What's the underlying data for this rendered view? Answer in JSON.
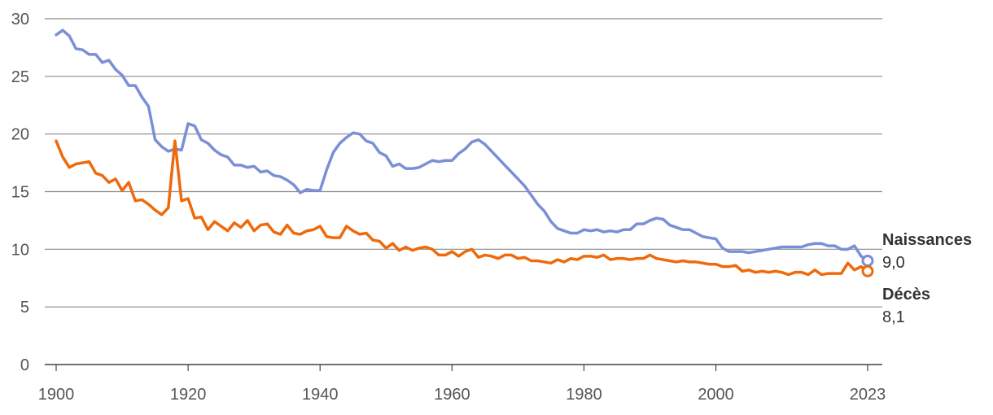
{
  "chart_data": {
    "type": "line",
    "title": "",
    "xlabel": "",
    "ylabel": "",
    "xlim": [
      1900,
      2023
    ],
    "ylim": [
      0,
      30
    ],
    "x_ticks": [
      "1900",
      "1920",
      "1940",
      "1960",
      "1980",
      "2000",
      "2023"
    ],
    "y_ticks": [
      "0",
      "5",
      "10",
      "15",
      "20",
      "25",
      "30"
    ],
    "grid": true,
    "legend": "end-of-line labels",
    "series": [
      {
        "name": "Naissances",
        "color": "#7b8fd6",
        "end_label": "9,0",
        "points": [
          [
            1900,
            28.6
          ],
          [
            1901,
            29.0
          ],
          [
            1902,
            28.5
          ],
          [
            1903,
            27.4
          ],
          [
            1904,
            27.3
          ],
          [
            1905,
            26.9
          ],
          [
            1906,
            26.9
          ],
          [
            1907,
            26.2
          ],
          [
            1908,
            26.4
          ],
          [
            1909,
            25.6
          ],
          [
            1910,
            25.1
          ],
          [
            1911,
            24.2
          ],
          [
            1912,
            24.2
          ],
          [
            1913,
            23.2
          ],
          [
            1914,
            22.4
          ],
          [
            1915,
            19.5
          ],
          [
            1916,
            18.9
          ],
          [
            1917,
            18.5
          ],
          [
            1918,
            18.7
          ],
          [
            1919,
            18.6
          ],
          [
            1920,
            20.9
          ],
          [
            1921,
            20.7
          ],
          [
            1922,
            19.5
          ],
          [
            1923,
            19.2
          ],
          [
            1924,
            18.6
          ],
          [
            1925,
            18.2
          ],
          [
            1926,
            18.0
          ],
          [
            1927,
            17.3
          ],
          [
            1928,
            17.3
          ],
          [
            1929,
            17.1
          ],
          [
            1930,
            17.2
          ],
          [
            1931,
            16.7
          ],
          [
            1932,
            16.8
          ],
          [
            1933,
            16.4
          ],
          [
            1934,
            16.3
          ],
          [
            1935,
            16.0
          ],
          [
            1936,
            15.6
          ],
          [
            1937,
            14.9
          ],
          [
            1938,
            15.2
          ],
          [
            1939,
            15.1
          ],
          [
            1940,
            15.1
          ],
          [
            1941,
            16.9
          ],
          [
            1942,
            18.4
          ],
          [
            1943,
            19.2
          ],
          [
            1944,
            19.7
          ],
          [
            1945,
            20.1
          ],
          [
            1946,
            20.0
          ],
          [
            1947,
            19.4
          ],
          [
            1948,
            19.2
          ],
          [
            1949,
            18.4
          ],
          [
            1950,
            18.1
          ],
          [
            1951,
            17.2
          ],
          [
            1952,
            17.4
          ],
          [
            1953,
            17.0
          ],
          [
            1954,
            17.0
          ],
          [
            1955,
            17.1
          ],
          [
            1956,
            17.4
          ],
          [
            1957,
            17.7
          ],
          [
            1958,
            17.6
          ],
          [
            1959,
            17.7
          ],
          [
            1960,
            17.7
          ],
          [
            1961,
            18.3
          ],
          [
            1962,
            18.7
          ],
          [
            1963,
            19.3
          ],
          [
            1964,
            19.5
          ],
          [
            1965,
            19.1
          ],
          [
            1966,
            18.5
          ],
          [
            1967,
            17.9
          ],
          [
            1968,
            17.3
          ],
          [
            1969,
            16.7
          ],
          [
            1970,
            16.1
          ],
          [
            1971,
            15.5
          ],
          [
            1972,
            14.7
          ],
          [
            1973,
            13.9
          ],
          [
            1974,
            13.3
          ],
          [
            1975,
            12.4
          ],
          [
            1976,
            11.8
          ],
          [
            1977,
            11.6
          ],
          [
            1978,
            11.4
          ],
          [
            1979,
            11.4
          ],
          [
            1980,
            11.7
          ],
          [
            1981,
            11.6
          ],
          [
            1982,
            11.7
          ],
          [
            1983,
            11.5
          ],
          [
            1984,
            11.6
          ],
          [
            1985,
            11.5
          ],
          [
            1986,
            11.7
          ],
          [
            1987,
            11.7
          ],
          [
            1988,
            12.2
          ],
          [
            1989,
            12.2
          ],
          [
            1990,
            12.5
          ],
          [
            1991,
            12.7
          ],
          [
            1992,
            12.6
          ],
          [
            1993,
            12.1
          ],
          [
            1994,
            11.9
          ],
          [
            1995,
            11.7
          ],
          [
            1996,
            11.7
          ],
          [
            1997,
            11.4
          ],
          [
            1998,
            11.1
          ],
          [
            1999,
            11.0
          ],
          [
            2000,
            10.9
          ],
          [
            2001,
            10.1
          ],
          [
            2002,
            9.8
          ],
          [
            2003,
            9.8
          ],
          [
            2004,
            9.8
          ],
          [
            2005,
            9.7
          ],
          [
            2006,
            9.8
          ],
          [
            2007,
            9.9
          ],
          [
            2008,
            10.0
          ],
          [
            2009,
            10.1
          ],
          [
            2010,
            10.2
          ],
          [
            2011,
            10.2
          ],
          [
            2012,
            10.2
          ],
          [
            2013,
            10.2
          ],
          [
            2014,
            10.4
          ],
          [
            2015,
            10.5
          ],
          [
            2016,
            10.5
          ],
          [
            2017,
            10.3
          ],
          [
            2018,
            10.3
          ],
          [
            2019,
            10.0
          ],
          [
            2020,
            10.0
          ],
          [
            2021,
            10.3
          ],
          [
            2022,
            9.4
          ],
          [
            2023,
            9.0
          ]
        ]
      },
      {
        "name": "Décès",
        "color": "#ee6a0c",
        "end_label": "8,1",
        "points": [
          [
            1900,
            19.4
          ],
          [
            1901,
            18.0
          ],
          [
            1902,
            17.1
          ],
          [
            1903,
            17.4
          ],
          [
            1904,
            17.5
          ],
          [
            1905,
            17.6
          ],
          [
            1906,
            16.6
          ],
          [
            1907,
            16.4
          ],
          [
            1908,
            15.8
          ],
          [
            1909,
            16.1
          ],
          [
            1910,
            15.1
          ],
          [
            1911,
            15.8
          ],
          [
            1912,
            14.2
          ],
          [
            1913,
            14.3
          ],
          [
            1914,
            13.9
          ],
          [
            1915,
            13.4
          ],
          [
            1916,
            13.0
          ],
          [
            1917,
            13.6
          ],
          [
            1918,
            19.4
          ],
          [
            1919,
            14.2
          ],
          [
            1920,
            14.4
          ],
          [
            1921,
            12.7
          ],
          [
            1922,
            12.8
          ],
          [
            1923,
            11.7
          ],
          [
            1924,
            12.4
          ],
          [
            1925,
            12.0
          ],
          [
            1926,
            11.6
          ],
          [
            1927,
            12.3
          ],
          [
            1928,
            11.9
          ],
          [
            1929,
            12.5
          ],
          [
            1930,
            11.6
          ],
          [
            1931,
            12.1
          ],
          [
            1932,
            12.2
          ],
          [
            1933,
            11.5
          ],
          [
            1934,
            11.3
          ],
          [
            1935,
            12.1
          ],
          [
            1936,
            11.4
          ],
          [
            1937,
            11.3
          ],
          [
            1938,
            11.6
          ],
          [
            1939,
            11.7
          ],
          [
            1940,
            12.0
          ],
          [
            1941,
            11.1
          ],
          [
            1942,
            11.0
          ],
          [
            1943,
            11.0
          ],
          [
            1944,
            12.0
          ],
          [
            1945,
            11.6
          ],
          [
            1946,
            11.3
          ],
          [
            1947,
            11.4
          ],
          [
            1948,
            10.8
          ],
          [
            1949,
            10.7
          ],
          [
            1950,
            10.1
          ],
          [
            1951,
            10.5
          ],
          [
            1952,
            9.9
          ],
          [
            1953,
            10.2
          ],
          [
            1954,
            9.9
          ],
          [
            1955,
            10.1
          ],
          [
            1956,
            10.2
          ],
          [
            1957,
            10.0
          ],
          [
            1958,
            9.5
          ],
          [
            1959,
            9.5
          ],
          [
            1960,
            9.8
          ],
          [
            1961,
            9.4
          ],
          [
            1962,
            9.8
          ],
          [
            1963,
            10.0
          ],
          [
            1964,
            9.3
          ],
          [
            1965,
            9.5
          ],
          [
            1966,
            9.4
          ],
          [
            1967,
            9.2
          ],
          [
            1968,
            9.5
          ],
          [
            1969,
            9.5
          ],
          [
            1970,
            9.2
          ],
          [
            1971,
            9.3
          ],
          [
            1972,
            9.0
          ],
          [
            1973,
            9.0
          ],
          [
            1974,
            8.9
          ],
          [
            1975,
            8.8
          ],
          [
            1976,
            9.1
          ],
          [
            1977,
            8.9
          ],
          [
            1978,
            9.2
          ],
          [
            1979,
            9.1
          ],
          [
            1980,
            9.4
          ],
          [
            1981,
            9.4
          ],
          [
            1982,
            9.3
          ],
          [
            1983,
            9.5
          ],
          [
            1984,
            9.1
          ],
          [
            1985,
            9.2
          ],
          [
            1986,
            9.2
          ],
          [
            1987,
            9.1
          ],
          [
            1988,
            9.2
          ],
          [
            1989,
            9.2
          ],
          [
            1990,
            9.5
          ],
          [
            1991,
            9.2
          ],
          [
            1992,
            9.1
          ],
          [
            1993,
            9.0
          ],
          [
            1994,
            8.9
          ],
          [
            1995,
            9.0
          ],
          [
            1996,
            8.9
          ],
          [
            1997,
            8.9
          ],
          [
            1998,
            8.8
          ],
          [
            1999,
            8.7
          ],
          [
            2000,
            8.7
          ],
          [
            2001,
            8.5
          ],
          [
            2002,
            8.5
          ],
          [
            2003,
            8.6
          ],
          [
            2004,
            8.1
          ],
          [
            2005,
            8.2
          ],
          [
            2006,
            8.0
          ],
          [
            2007,
            8.1
          ],
          [
            2008,
            8.0
          ],
          [
            2009,
            8.1
          ],
          [
            2010,
            8.0
          ],
          [
            2011,
            7.8
          ],
          [
            2012,
            8.0
          ],
          [
            2013,
            8.0
          ],
          [
            2014,
            7.8
          ],
          [
            2015,
            8.2
          ],
          [
            2016,
            7.8
          ],
          [
            2017,
            7.9
          ],
          [
            2018,
            7.9
          ],
          [
            2019,
            7.9
          ],
          [
            2020,
            8.8
          ],
          [
            2021,
            8.2
          ],
          [
            2022,
            8.5
          ],
          [
            2023,
            8.1
          ]
        ]
      }
    ]
  }
}
